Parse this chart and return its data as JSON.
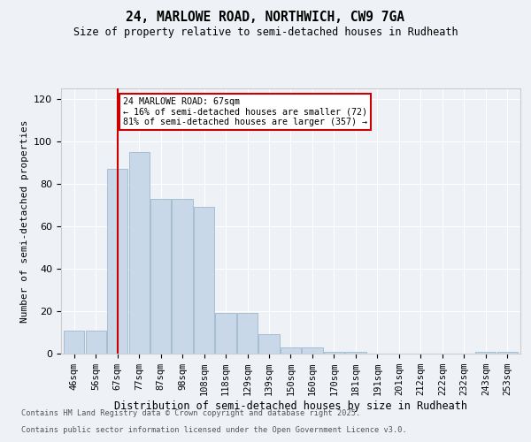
{
  "title1": "24, MARLOWE ROAD, NORTHWICH, CW9 7GA",
  "title2": "Size of property relative to semi-detached houses in Rudheath",
  "xlabel": "Distribution of semi-detached houses by size in Rudheath",
  "ylabel": "Number of semi-detached properties",
  "categories": [
    "46sqm",
    "56sqm",
    "67sqm",
    "77sqm",
    "87sqm",
    "98sqm",
    "108sqm",
    "118sqm",
    "129sqm",
    "139sqm",
    "150sqm",
    "160sqm",
    "170sqm",
    "181sqm",
    "191sqm",
    "201sqm",
    "212sqm",
    "222sqm",
    "232sqm",
    "243sqm",
    "253sqm"
  ],
  "values": [
    11,
    11,
    87,
    95,
    73,
    73,
    69,
    19,
    19,
    9,
    3,
    3,
    1,
    1,
    0,
    0,
    0,
    0,
    0,
    1,
    1
  ],
  "bar_color": "#c8d8e8",
  "bar_edge_color": "#9fb8cc",
  "vline_x_idx": 2,
  "annotation_box_color": "#ffffff",
  "annotation_box_edge": "#cc0000",
  "vline_color": "#cc0000",
  "ylim": [
    0,
    125
  ],
  "yticks": [
    0,
    20,
    40,
    60,
    80,
    100,
    120
  ],
  "property_label": "24 MARLOWE ROAD: 67sqm",
  "pct_smaller": 16,
  "pct_smaller_n": 72,
  "pct_larger": 81,
  "pct_larger_n": 357,
  "footer1": "Contains HM Land Registry data © Crown copyright and database right 2025.",
  "footer2": "Contains public sector information licensed under the Open Government Licence v3.0.",
  "bg_color": "#eef2f6",
  "plot_bg_color": "#eef2f6"
}
